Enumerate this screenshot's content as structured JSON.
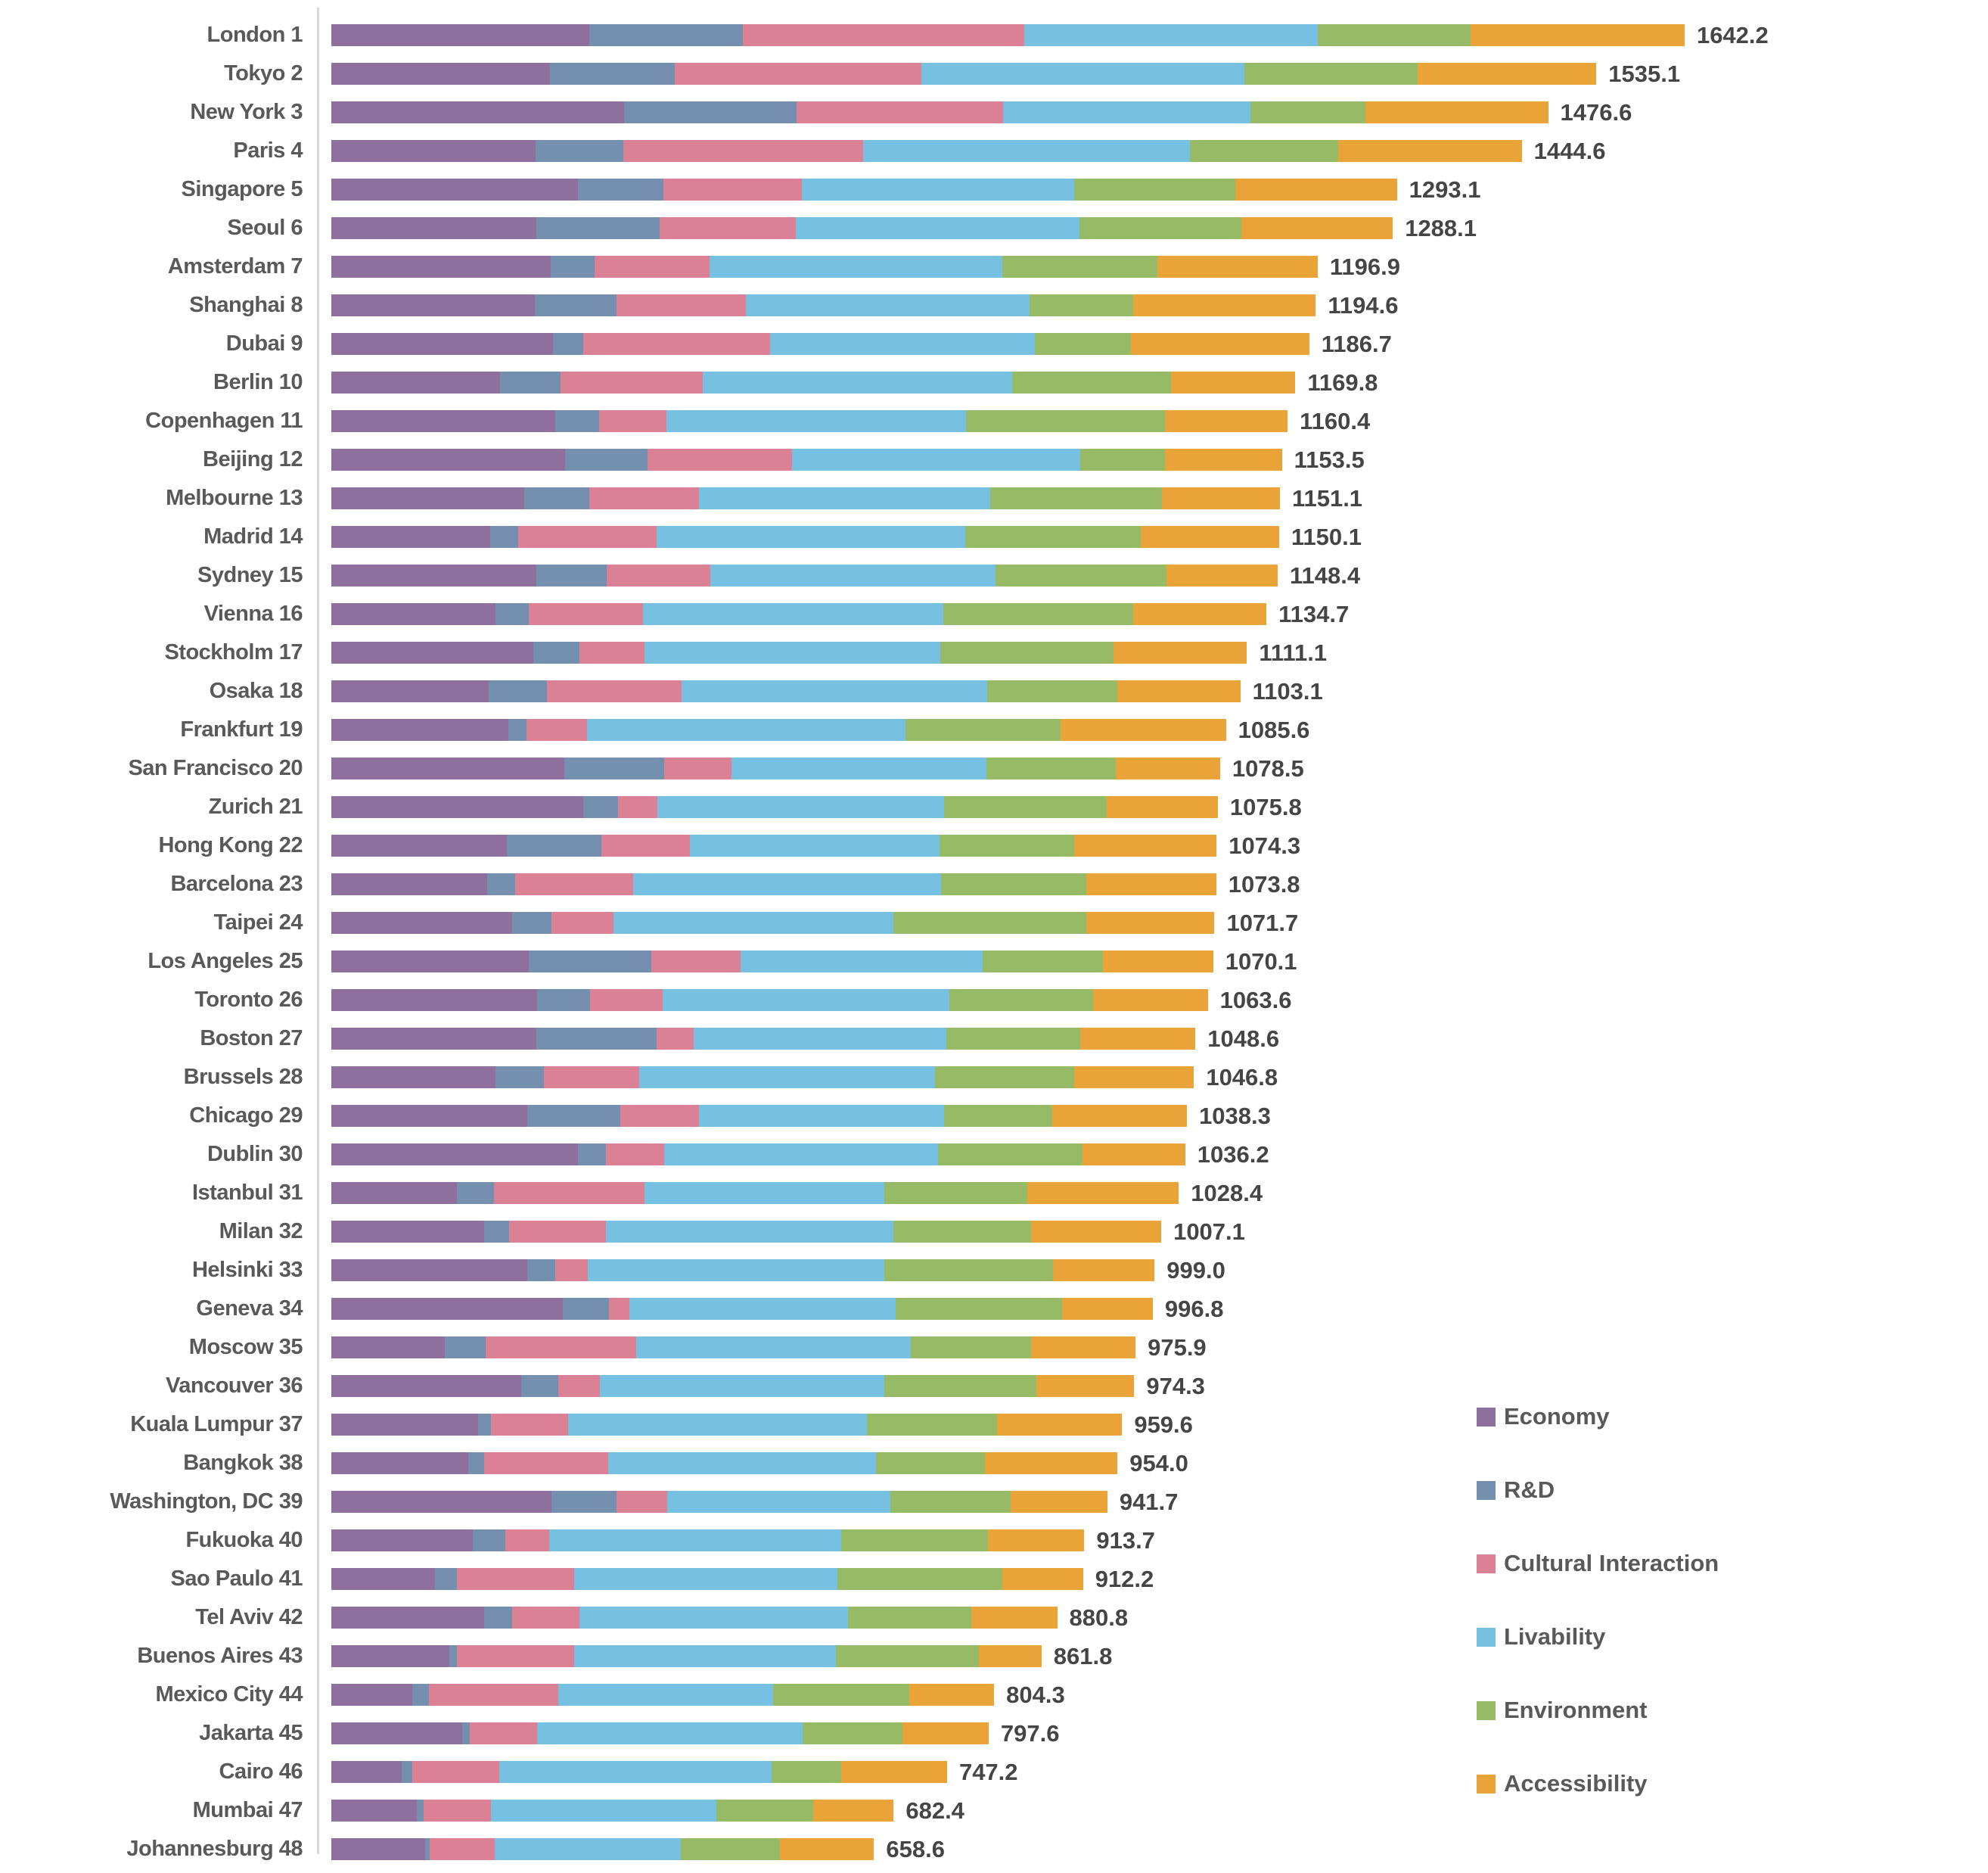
{
  "colors": {
    "economy": "#8E6F9E",
    "rd": "#7590AE",
    "cultural_interaction": "#DC8095",
    "livability": "#76C1E2",
    "environment": "#96BA65",
    "accessibility": "#EAA339",
    "city_label_text": "#595959",
    "total_label_text": "#454545",
    "axis_line": "#D9D9D9"
  },
  "legend": {
    "items": [
      {
        "label": "Economy",
        "color": "#8E6F9E"
      },
      {
        "label": "R&D",
        "color": "#7590AE"
      },
      {
        "label": "Cultural Interaction",
        "color": "#DC8095"
      },
      {
        "label": "Livability",
        "color": "#76C1E2"
      },
      {
        "label": "Environment",
        "color": "#96BA65"
      },
      {
        "label": "Accessibility",
        "color": "#EAA339"
      }
    ]
  },
  "chart_data": {
    "type": "bar",
    "stacked": true,
    "orientation": "horizontal",
    "grid": false,
    "legend_position": "right-bottom",
    "series_names": [
      "Economy",
      "R&D",
      "Cultural Interaction",
      "Livability",
      "Environment",
      "Accessibility"
    ],
    "series_colors": [
      "#8E6F9E",
      "#7590AE",
      "#DC8095",
      "#76C1E2",
      "#96BA65",
      "#EAA339"
    ],
    "x_axis_max": 1642.2,
    "value_label_format": "one-decimal",
    "cities": [
      {
        "label": "London 1",
        "total": 1642.2,
        "values": [
          313,
          186,
          342,
          356,
          185,
          260.2
        ]
      },
      {
        "label": "Tokyo 2",
        "total": 1535.1,
        "values": [
          265,
          152,
          299,
          392,
          210,
          217.1
        ]
      },
      {
        "label": "New York 3",
        "total": 1476.6,
        "values": [
          355,
          210,
          250,
          300,
          140,
          221.6
        ]
      },
      {
        "label": "Paris 4",
        "total": 1444.6,
        "values": [
          248,
          106,
          291,
          397,
          180,
          222.6
        ]
      },
      {
        "label": "Singapore 5",
        "total": 1293.1,
        "values": [
          299,
          104,
          168,
          330,
          196,
          196.1
        ]
      },
      {
        "label": "Seoul 6",
        "total": 1288.1,
        "values": [
          249,
          149,
          166,
          344,
          196,
          184.1
        ]
      },
      {
        "label": "Amsterdam 7",
        "total": 1196.9,
        "values": [
          266,
          53,
          140,
          355,
          188,
          194.9
        ]
      },
      {
        "label": "Shanghai 8",
        "total": 1194.6,
        "values": [
          247,
          99,
          157,
          344,
          126,
          221.6
        ]
      },
      {
        "label": "Dubai 9",
        "total": 1186.7,
        "values": [
          269,
          37,
          226,
          322,
          116,
          216.7
        ]
      },
      {
        "label": "Berlin 10",
        "total": 1169.8,
        "values": [
          205,
          73,
          173,
          375,
          193,
          150.8
        ]
      },
      {
        "label": "Copenhagen 11",
        "total": 1160.4,
        "values": [
          272,
          53,
          82,
          363,
          242,
          148.4
        ]
      },
      {
        "label": "Beijing 12",
        "total": 1153.5,
        "values": [
          284,
          100,
          175,
          350,
          103,
          141.5
        ]
      },
      {
        "label": "Melbourne 13",
        "total": 1151.1,
        "values": [
          234,
          79,
          133,
          354,
          208,
          143.1
        ]
      },
      {
        "label": "Madrid 14",
        "total": 1150.1,
        "values": [
          193,
          34,
          168,
          374,
          213,
          168.1
        ]
      },
      {
        "label": "Sydney 15",
        "total": 1148.4,
        "values": [
          249,
          85,
          126,
          346,
          207,
          135.4
        ]
      },
      {
        "label": "Vienna 16",
        "total": 1134.7,
        "values": [
          199,
          41,
          138,
          365,
          230,
          161.7
        ]
      },
      {
        "label": "Stockholm 17",
        "total": 1111.1,
        "values": [
          245,
          56,
          79,
          359,
          210,
          162.1
        ]
      },
      {
        "label": "Osaka 18",
        "total": 1103.1,
        "values": [
          191,
          71,
          163,
          371,
          158,
          149.1
        ]
      },
      {
        "label": "Frankfurt 19",
        "total": 1085.6,
        "values": [
          215,
          22,
          73,
          387,
          188,
          200.6
        ]
      },
      {
        "label": "San Francisco 20",
        "total": 1078.5,
        "values": [
          283,
          121,
          82,
          309,
          157,
          126.5
        ]
      },
      {
        "label": "Zurich 21",
        "total": 1075.8,
        "values": [
          306,
          42,
          48,
          348,
          197,
          134.8
        ]
      },
      {
        "label": "Hong Kong 22",
        "total": 1074.3,
        "values": [
          213,
          115,
          107,
          303,
          163,
          173.3
        ]
      },
      {
        "label": "Barcelona 23",
        "total": 1073.8,
        "values": [
          189,
          34,
          143,
          374,
          176,
          157.8
        ]
      },
      {
        "label": "Taipei 24",
        "total": 1071.7,
        "values": [
          219,
          48,
          75,
          340,
          234,
          155.7
        ]
      },
      {
        "label": "Los Angeles 25",
        "total": 1070.1,
        "values": [
          240,
          148,
          109,
          293,
          146,
          134.1
        ]
      },
      {
        "label": "Toronto 26",
        "total": 1063.6,
        "values": [
          250,
          64,
          88,
          348,
          174,
          139.6
        ]
      },
      {
        "label": "Boston 27",
        "total": 1048.6,
        "values": [
          249,
          146,
          45,
          306,
          163,
          139.6
        ]
      },
      {
        "label": "Brussels 28",
        "total": 1046.8,
        "values": [
          199,
          59,
          116,
          359,
          168,
          145.8
        ]
      },
      {
        "label": "Chicago 29",
        "total": 1038.3,
        "values": [
          238,
          113,
          95,
          298,
          131,
          163.3
        ]
      },
      {
        "label": "Dublin 30",
        "total": 1036.2,
        "values": [
          299,
          34,
          71,
          332,
          176,
          124.2
        ]
      },
      {
        "label": "Istanbul 31",
        "total": 1028.4,
        "values": [
          152,
          45,
          183,
          291,
          174,
          183.4
        ]
      },
      {
        "label": "Milan 32",
        "total": 1007.1,
        "values": [
          185,
          31,
          117,
          349,
          167,
          158.1
        ]
      },
      {
        "label": "Helsinki 33",
        "total": 999.0,
        "values": [
          238,
          34,
          39,
          360,
          205,
          123.0
        ]
      },
      {
        "label": "Geneva 34",
        "total": 996.8,
        "values": [
          281,
          56,
          25,
          323,
          202,
          109.8
        ]
      },
      {
        "label": "Moscow 35",
        "total": 975.9,
        "values": [
          138,
          49,
          183,
          333,
          146,
          126.9
        ]
      },
      {
        "label": "Vancouver 36",
        "total": 974.3,
        "values": [
          230,
          45,
          51,
          345,
          185,
          118.3
        ]
      },
      {
        "label": "Kuala Lumpur 37",
        "total": 959.6,
        "values": [
          178,
          16,
          93,
          363,
          158,
          151.6
        ]
      },
      {
        "label": "Bangkok 38",
        "total": 954.0,
        "values": [
          166,
          19,
          151,
          325,
          132,
          161.0
        ]
      },
      {
        "label": "Washington, DC 39",
        "total": 941.7,
        "values": [
          267,
          79,
          62,
          270,
          146,
          117.7
        ]
      },
      {
        "label": "Fukuoka 40",
        "total": 913.7,
        "values": [
          172,
          39,
          53,
          355,
          178,
          116.7
        ]
      },
      {
        "label": "Sao Paulo 41",
        "total": 912.2,
        "values": [
          126,
          26,
          143,
          319,
          200,
          98.2
        ]
      },
      {
        "label": "Tel Aviv 42",
        "total": 880.8,
        "values": [
          185,
          34,
          82,
          326,
          150,
          103.8
        ]
      },
      {
        "label": "Buenos Aires 43",
        "total": 861.8,
        "values": [
          143,
          9,
          143,
          317,
          174,
          75.8
        ]
      },
      {
        "label": "Mexico City 44",
        "total": 804.3,
        "values": [
          98,
          20,
          157,
          261,
          165,
          103.3
        ]
      },
      {
        "label": "Jakarta 45",
        "total": 797.6,
        "values": [
          159,
          9,
          82,
          322,
          121,
          104.6
        ]
      },
      {
        "label": "Cairo 46",
        "total": 747.2,
        "values": [
          85,
          13,
          106,
          330,
          85,
          128.2
        ]
      },
      {
        "label": "Mumbai 47",
        "total": 682.4,
        "values": [
          104,
          8,
          82,
          273,
          118,
          97.4
        ]
      },
      {
        "label": "Johannesburg 48",
        "total": 658.6,
        "values": [
          114,
          5,
          79,
          226,
          120,
          114.6
        ]
      }
    ]
  }
}
